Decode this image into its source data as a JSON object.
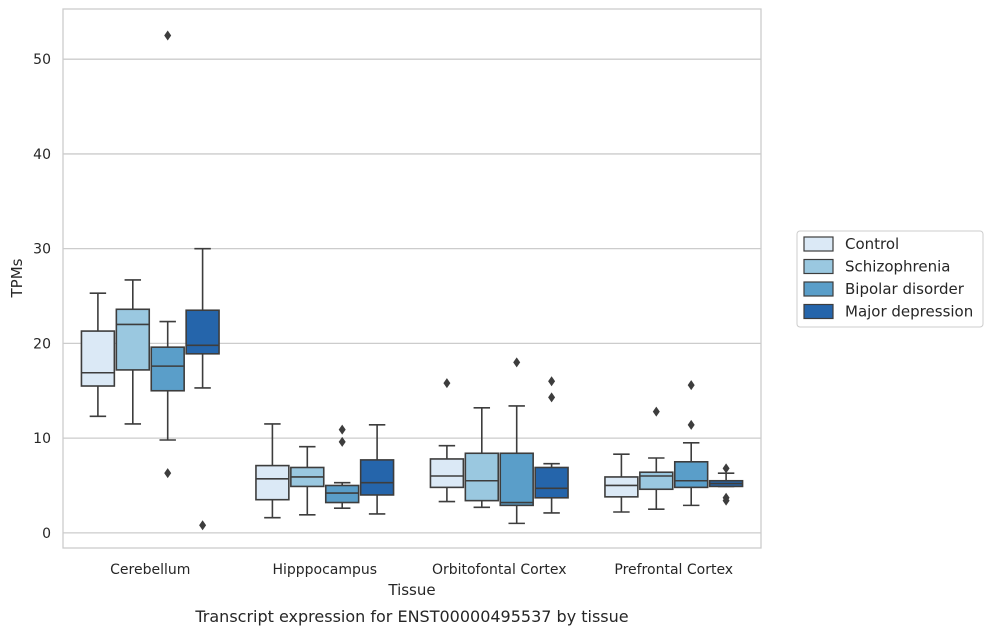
{
  "chart_data": {
    "type": "box",
    "caption": "Transcript expression for ENST00000495537 by tissue",
    "xlabel": "Tissue",
    "ylabel": "TPMs",
    "ylim": [
      -1.6,
      55.3
    ],
    "yticks": [
      0,
      10,
      20,
      30,
      40,
      50
    ],
    "grid": "horizontal",
    "legend_position": "right",
    "categories": [
      "Cerebellum",
      "Hipppocampus",
      "Orbitofontal Cortex",
      "Prefrontal Cortex"
    ],
    "series": [
      {
        "name": "Control",
        "color": "#dbe9f6",
        "boxes": [
          {
            "whislo": 12.3,
            "q1": 15.5,
            "med": 16.9,
            "q3": 21.3,
            "whishi": 25.3,
            "fliers": []
          },
          {
            "whislo": 1.6,
            "q1": 3.5,
            "med": 5.7,
            "q3": 7.1,
            "whishi": 11.5,
            "fliers": []
          },
          {
            "whislo": 3.3,
            "q1": 4.8,
            "med": 6.0,
            "q3": 7.8,
            "whishi": 9.2,
            "fliers": [
              15.8
            ]
          },
          {
            "whislo": 2.2,
            "q1": 3.8,
            "med": 5.0,
            "q3": 5.9,
            "whishi": 8.3,
            "fliers": []
          }
        ]
      },
      {
        "name": "Schizophrenia",
        "color": "#9ac8e0",
        "boxes": [
          {
            "whislo": 11.5,
            "q1": 17.2,
            "med": 22.0,
            "q3": 23.6,
            "whishi": 26.7,
            "fliers": []
          },
          {
            "whislo": 1.9,
            "q1": 4.9,
            "med": 5.9,
            "q3": 6.9,
            "whishi": 9.1,
            "fliers": []
          },
          {
            "whislo": 2.7,
            "q1": 3.4,
            "med": 5.5,
            "q3": 8.4,
            "whishi": 13.2,
            "fliers": []
          },
          {
            "whislo": 2.5,
            "q1": 4.6,
            "med": 6.0,
            "q3": 6.4,
            "whishi": 7.9,
            "fliers": [
              12.8
            ]
          }
        ]
      },
      {
        "name": "Bipolar disorder",
        "color": "#5a9ec9",
        "boxes": [
          {
            "whislo": 9.8,
            "q1": 15.0,
            "med": 17.6,
            "q3": 19.6,
            "whishi": 22.3,
            "fliers": [
              6.3,
              52.5
            ]
          },
          {
            "whislo": 2.6,
            "q1": 3.2,
            "med": 4.2,
            "q3": 5.0,
            "whishi": 5.3,
            "fliers": [
              9.6,
              10.9
            ]
          },
          {
            "whislo": 1.0,
            "q1": 2.9,
            "med": 3.2,
            "q3": 8.4,
            "whishi": 13.4,
            "fliers": [
              18.0
            ]
          },
          {
            "whislo": 2.9,
            "q1": 4.8,
            "med": 5.5,
            "q3": 7.5,
            "whishi": 9.5,
            "fliers": [
              11.4,
              15.6
            ]
          }
        ]
      },
      {
        "name": "Major depression",
        "color": "#2565ab",
        "boxes": [
          {
            "whislo": 15.3,
            "q1": 18.9,
            "med": 19.8,
            "q3": 23.5,
            "whishi": 30.0,
            "fliers": [
              0.8
            ]
          },
          {
            "whislo": 2.0,
            "q1": 4.0,
            "med": 5.3,
            "q3": 7.7,
            "whishi": 11.4,
            "fliers": []
          },
          {
            "whislo": 2.1,
            "q1": 3.7,
            "med": 4.7,
            "q3": 6.9,
            "whishi": 7.3,
            "fliers": [
              14.3,
              16.0
            ]
          },
          {
            "whislo": 4.9,
            "q1": 4.9,
            "med": 5.2,
            "q3": 5.5,
            "whishi": 6.3,
            "fliers": [
              3.4,
              3.7,
              6.8
            ]
          }
        ]
      }
    ]
  }
}
